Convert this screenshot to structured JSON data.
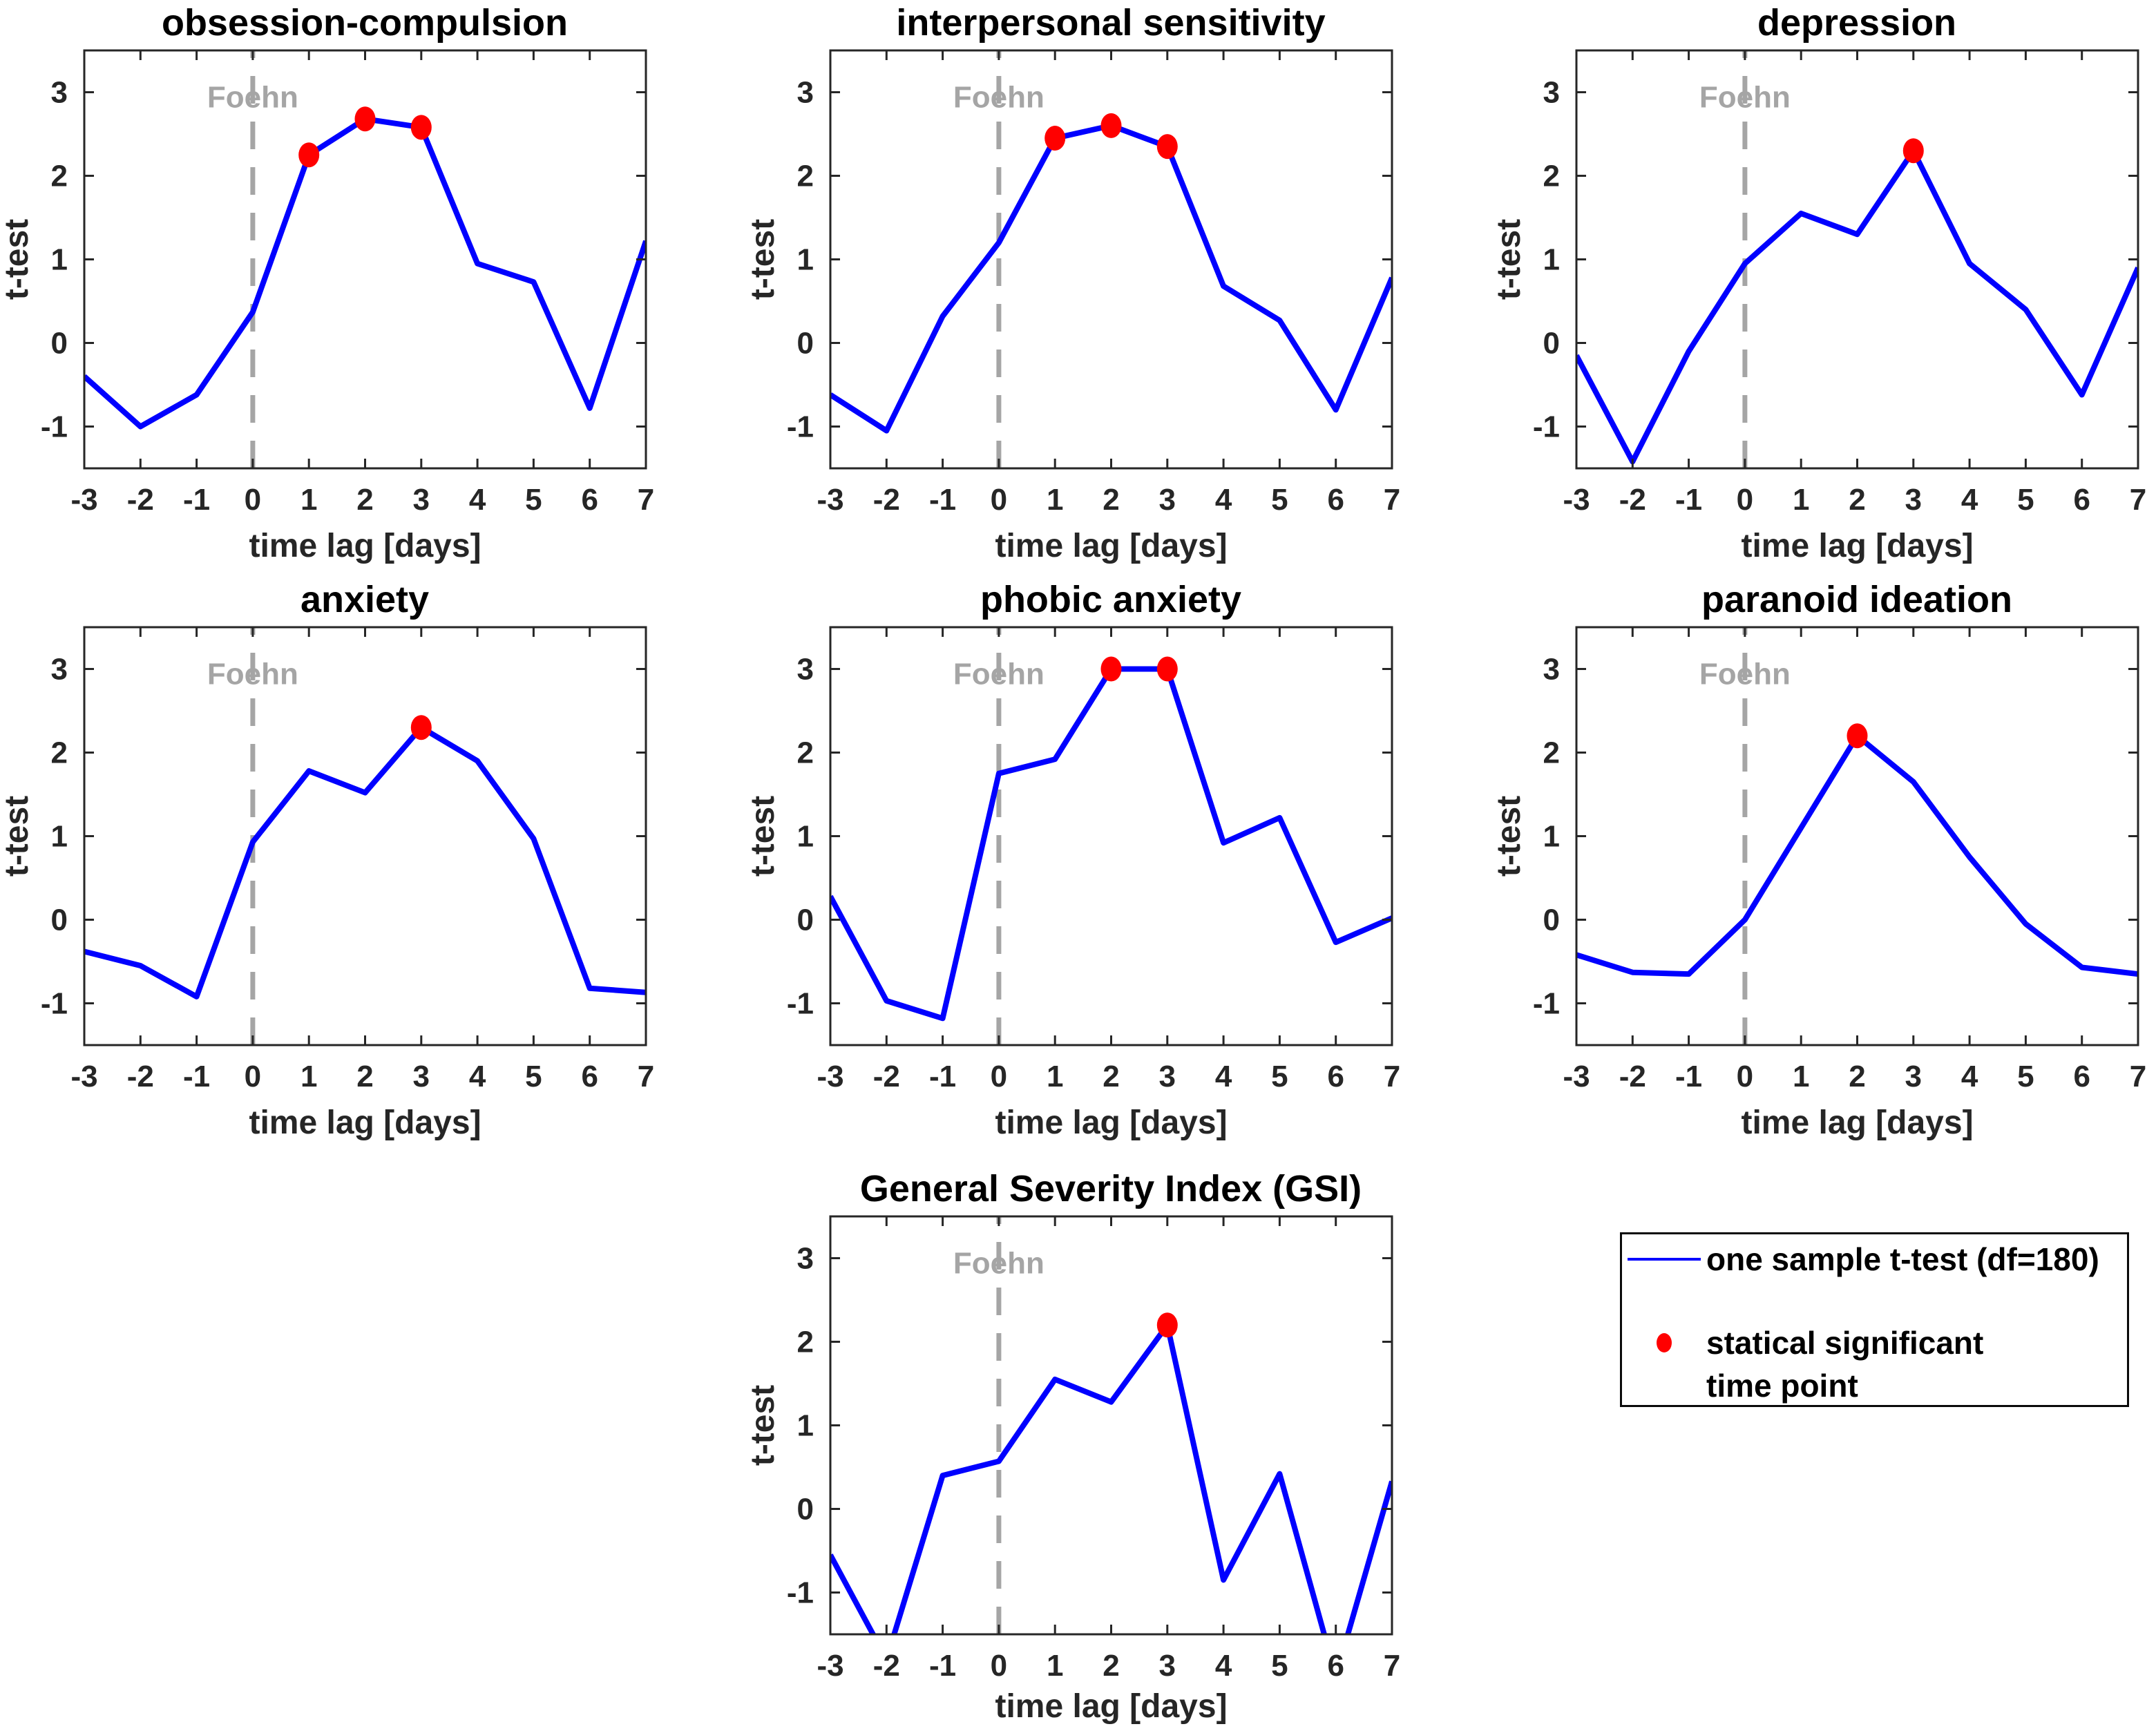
{
  "figure": {
    "background": "#FFFFFF"
  },
  "chart_data": {
    "type": "line",
    "x": [
      -3,
      -2,
      -1,
      0,
      1,
      2,
      3,
      4,
      5,
      6,
      7
    ],
    "xlabel": "time lag [days]",
    "ylabel": "t-test",
    "xlim": [
      -3,
      7
    ],
    "ylim": [
      -1.5,
      3.5
    ],
    "xticks": [
      -3,
      -2,
      -1,
      0,
      1,
      2,
      3,
      4,
      5,
      6,
      7
    ],
    "yticks": [
      -1,
      0,
      1,
      2,
      3
    ],
    "grid": false,
    "series_color": "#0000FF",
    "significant_color": "#FF0000",
    "axis_color": "#262626",
    "event_line": {
      "x": 0,
      "label": "Foehn",
      "style": "dashed",
      "color": "#A5A5A5",
      "label_color": "#A5A5A5"
    },
    "plots": [
      {
        "title": "obsession-compulsion",
        "values": [
          -0.4,
          -1.0,
          -0.62,
          0.37,
          2.25,
          2.68,
          2.58,
          0.95,
          0.73,
          -0.78,
          1.22
        ],
        "significant_x": [
          1,
          2,
          3
        ]
      },
      {
        "title": "interpersonal sensitivity",
        "values": [
          -0.62,
          -1.05,
          0.32,
          1.2,
          2.45,
          2.6,
          2.35,
          0.68,
          0.27,
          -0.8,
          0.78
        ],
        "significant_x": [
          1,
          2,
          3
        ]
      },
      {
        "title": "depression",
        "values": [
          -0.15,
          -1.42,
          -0.1,
          0.95,
          1.55,
          1.3,
          2.3,
          0.95,
          0.4,
          -0.62,
          0.9
        ],
        "significant_x": [
          3
        ]
      },
      {
        "title": "anxiety",
        "values": [
          -0.38,
          -0.55,
          -0.92,
          0.93,
          1.78,
          1.52,
          2.3,
          1.9,
          0.97,
          -0.82,
          -0.87
        ],
        "significant_x": [
          3
        ]
      },
      {
        "title": "phobic anxiety",
        "values": [
          0.28,
          -0.97,
          -1.18,
          1.75,
          1.92,
          3.0,
          3.0,
          0.92,
          1.22,
          -0.27,
          0.02
        ],
        "significant_x": [
          2,
          3
        ]
      },
      {
        "title": "paranoid ideation",
        "values": [
          -0.42,
          -0.63,
          -0.65,
          0.0,
          1.1,
          2.2,
          1.65,
          0.75,
          -0.05,
          -0.57,
          -0.65
        ],
        "significant_x": [
          2
        ]
      },
      {
        "title": "General Severity Index (GSI)",
        "values": [
          -0.55,
          -1.8,
          0.4,
          0.57,
          1.55,
          1.28,
          2.2,
          -0.85,
          0.42,
          -2.0,
          0.33
        ],
        "significant_x": [
          3
        ]
      }
    ],
    "legend": {
      "position": "bottom-right",
      "entries": [
        {
          "type": "line",
          "label": "one sample t-test (df=180)",
          "color": "#0000FF"
        },
        {
          "type": "marker",
          "label_lines": [
            "statical significant",
            "time point"
          ],
          "color": "#FF0000"
        }
      ]
    }
  }
}
